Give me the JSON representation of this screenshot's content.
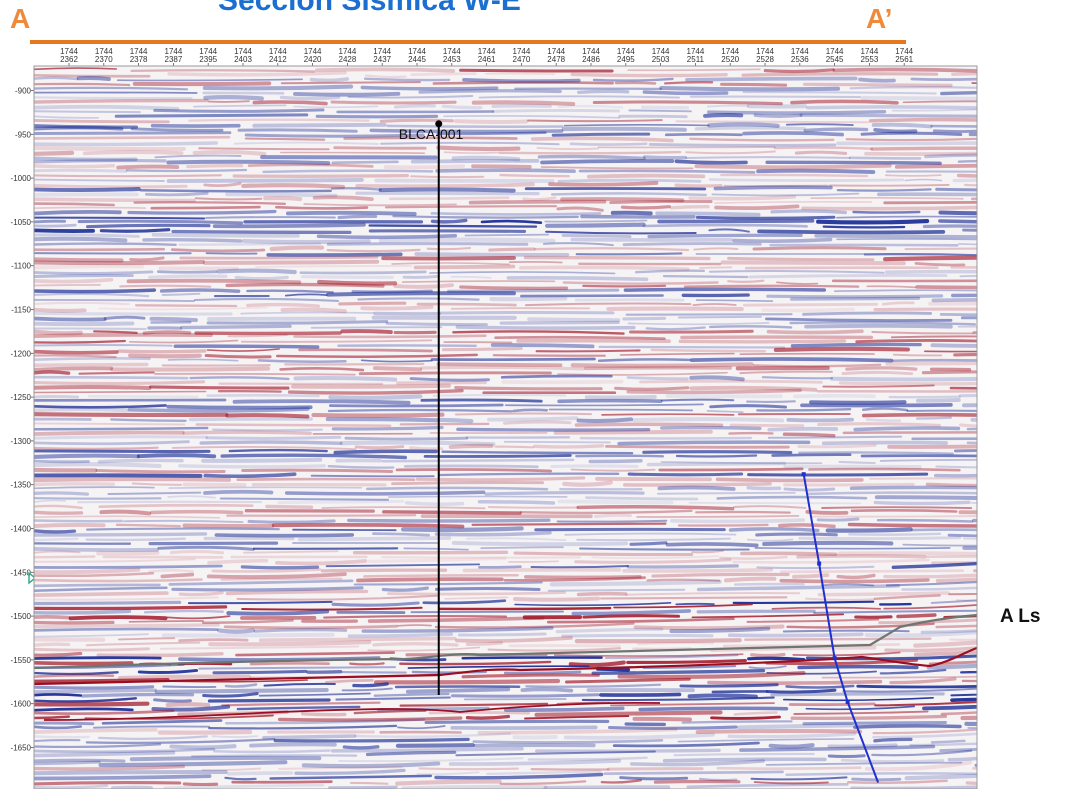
{
  "title": "Sección Sísmica W-E",
  "section_start_label": "A",
  "section_end_label": "A’",
  "horizon_label": "A Ls",
  "well": {
    "name": "BLCA-001",
    "trace": 2450,
    "top_depth": 938,
    "bottom_depth": 1590
  },
  "trace_axis": {
    "line_prefix": "1744",
    "traces": [
      "2362",
      "2370",
      "2378",
      "2387",
      "2395",
      "2403",
      "2412",
      "2420",
      "2428",
      "2437",
      "2445",
      "2453",
      "2461",
      "2470",
      "2478",
      "2486",
      "2495",
      "2503",
      "2511",
      "2520",
      "2528",
      "2536",
      "2545",
      "2553",
      "2561"
    ]
  },
  "depth_axis": {
    "min": 878,
    "max": 1690,
    "ticks": [
      "-900",
      "-950",
      "-1000",
      "-1050",
      "-1100",
      "-1150",
      "-1200",
      "-1250",
      "-1300",
      "-1350",
      "-1400",
      "-1450",
      "-1500",
      "-1550",
      "-1600",
      "-1650"
    ]
  },
  "fault": {
    "points": [
      [
        2537,
        1338
      ],
      [
        2541,
        1440
      ],
      [
        2545,
        1548
      ],
      [
        2548,
        1598
      ],
      [
        2555,
        1690
      ]
    ]
  },
  "colors": {
    "title": "#1a6fd1",
    "section_letters": "#ef8a3a",
    "section_bar": "#e5781f",
    "positive_amplitude": "#a31a2b",
    "negative_amplitude": "#1a2d96",
    "fault": "#1f2fd0",
    "horizon_grey": "#6f7570",
    "horizon_red": "#9a0e22",
    "well": "#000000"
  }
}
